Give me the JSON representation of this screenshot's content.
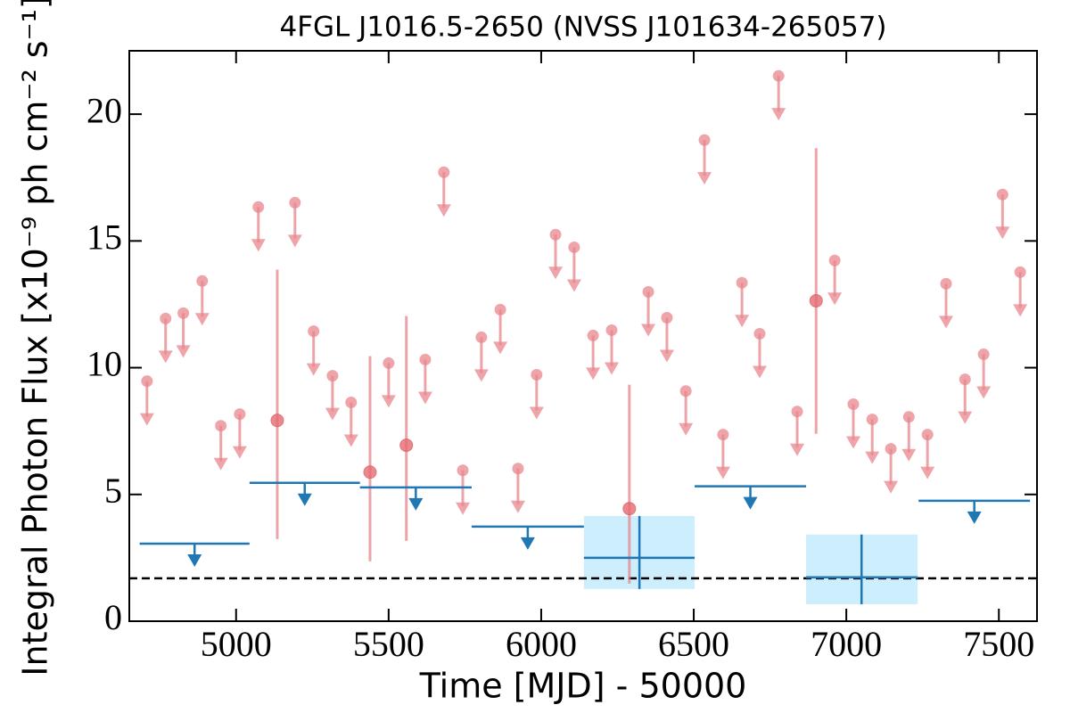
{
  "chart_data": {
    "type": "lightcurve",
    "title": "4FGL J1016.5-2650 (NVSS J101634-265057)",
    "xlabel": "Time [MJD] - 50000",
    "ylabel": "Integral Photon Flux [x10⁻⁹ ph cm⁻² s⁻¹]",
    "xlim": [
      4650,
      7625
    ],
    "ylim": [
      0,
      22.5
    ],
    "xticks": [
      5000,
      5500,
      6000,
      6500,
      7000,
      7500
    ],
    "yticks": [
      0,
      5,
      10,
      15,
      20
    ],
    "upper_limits": {
      "color": "#e8868c",
      "x": [
        4708,
        4769,
        4827,
        4889,
        4950,
        5012,
        5073,
        5193,
        5254,
        5316,
        5377,
        5500,
        5620,
        5681,
        5743,
        5804,
        5866,
        5924,
        5985,
        6047,
        6108,
        6170,
        6231,
        6351,
        6412,
        6474,
        6535,
        6596,
        6658,
        6716,
        6778,
        6839,
        6962,
        7023,
        7085,
        7146,
        7205,
        7266,
        7327,
        7389,
        7450,
        7512,
        7570
      ],
      "values": [
        9.47,
        11.94,
        12.15,
        13.42,
        7.71,
        8.17,
        16.34,
        16.51,
        11.44,
        9.68,
        8.63,
        10.18,
        10.32,
        17.71,
        5.95,
        11.2,
        12.29,
        6.02,
        9.72,
        15.25,
        14.75,
        11.27,
        11.48,
        12.99,
        11.97,
        9.08,
        18.98,
        7.36,
        13.35,
        11.34,
        21.51,
        8.27,
        14.23,
        8.56,
        7.96,
        6.8,
        8.06,
        7.36,
        13.31,
        9.54,
        10.53,
        16.83,
        13.77
      ]
    },
    "detections": {
      "color": "#e8868c",
      "x": [
        5135,
        5439,
        5558,
        6289,
        6901
      ],
      "values": [
        7.92,
        5.88,
        6.94,
        4.44,
        12.64
      ],
      "y_low": [
        3.24,
        2.36,
        3.17,
        1.48,
        7.39
      ],
      "y_high": [
        13.87,
        10.46,
        12.04,
        9.33,
        18.66
      ]
    },
    "bin_upper_limits": {
      "color": "#1f77b4",
      "x_start": [
        4684,
        5044,
        5406,
        5772,
        6503,
        7237
      ],
      "x_end": [
        5044,
        5406,
        5772,
        6140,
        6868,
        7602
      ],
      "values": [
        3.06,
        5.46,
        5.28,
        3.73,
        5.32,
        4.75
      ]
    },
    "bin_detections": {
      "color": "#1f77b4",
      "box_color": "#cdeefc",
      "x": [
        6322,
        7050
      ],
      "x_start": [
        6140,
        6868
      ],
      "x_end": [
        6503,
        7234
      ],
      "values": [
        2.5,
        1.73
      ],
      "y_low": [
        1.27,
        0.67
      ],
      "y_high": [
        4.15,
        3.42
      ]
    },
    "reference_line": {
      "value": 1.69,
      "color": "#000000"
    }
  }
}
